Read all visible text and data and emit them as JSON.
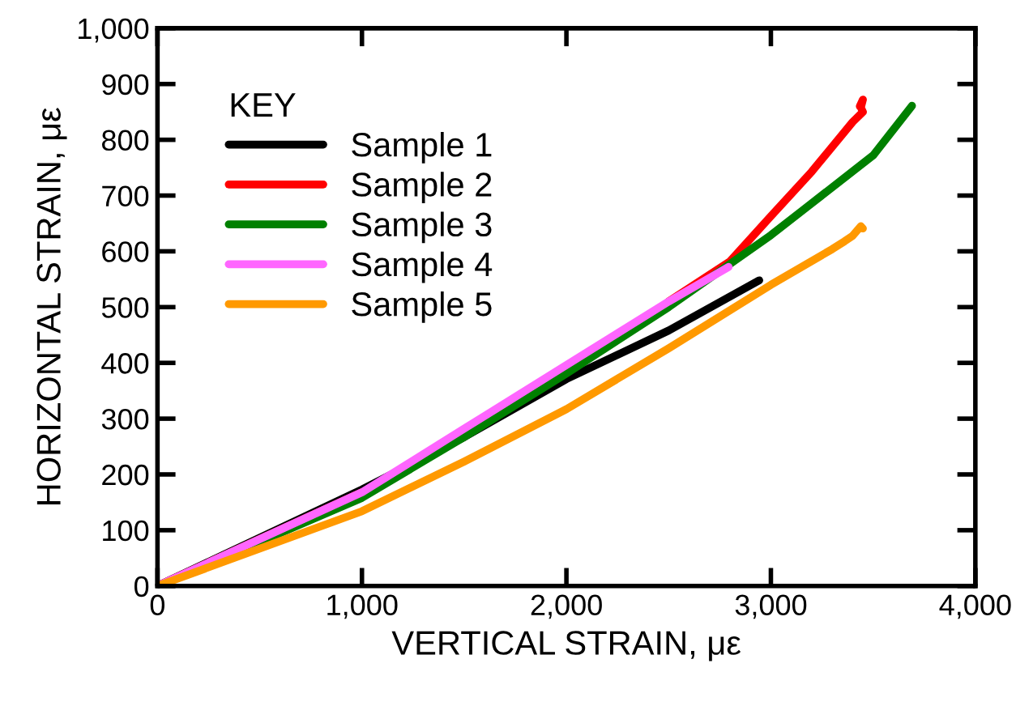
{
  "chart_data": {
    "type": "line",
    "xlabel": "VERTICAL STRAIN, με",
    "ylabel": "HORIZONTAL STRAIN, με",
    "legend_title": "KEY",
    "legend": "top left",
    "grid": false,
    "marker": "none",
    "line_style": "solid",
    "xlim": [
      0,
      4000
    ],
    "xticks": [
      {
        "value": 0,
        "label": "0"
      },
      {
        "value": 1000,
        "label": "1,000"
      },
      {
        "value": 2000,
        "label": "2,000"
      },
      {
        "value": 3000,
        "label": "3,000"
      },
      {
        "value": 4000,
        "label": "4,000"
      }
    ],
    "ylim": [
      0,
      1000
    ],
    "yticks": [
      0,
      100,
      200,
      300,
      400,
      500,
      600,
      700,
      800,
      900,
      {
        "value": 1000,
        "label": "1,000"
      }
    ],
    "series": [
      {
        "name": "Sample 1",
        "color": "#000000",
        "x": [
          0,
          1000,
          1500,
          2000,
          2500,
          2943
        ],
        "values": [
          0,
          173,
          267,
          371,
          458,
          548
        ]
      },
      {
        "name": "Sample 2",
        "color": "#ff0000",
        "x": [
          0,
          1000,
          1500,
          2000,
          2500,
          2800,
          3000,
          3200,
          3400,
          3450,
          3440,
          3450,
          3435
        ],
        "values": [
          0,
          168,
          null,
          null,
          510,
          582,
          663,
          743,
          832,
          850,
          858,
          872,
          860
        ]
      },
      {
        "name": "Sample 3",
        "color": "#008000",
        "x": [
          0,
          1000,
          1500,
          2000,
          2500,
          3000,
          3500,
          3690
        ],
        "values": [
          0,
          158,
          267,
          381,
          500,
          629,
          772,
          861
        ]
      },
      {
        "name": "Sample 4",
        "color": "#ff66ff",
        "x": [
          0,
          1000,
          1500,
          2000,
          2500,
          2793
        ],
        "values": [
          0,
          168,
          282,
          396,
          510,
          572
        ]
      },
      {
        "name": "Sample 5",
        "color": "#ff9900",
        "x": [
          0,
          1000,
          1500,
          2000,
          2500,
          3000,
          3300,
          3360,
          3400,
          3440,
          3450
        ],
        "values": [
          0,
          134,
          223,
          317,
          426,
          540,
          604,
          618,
          628,
          645,
          641
        ]
      }
    ]
  }
}
